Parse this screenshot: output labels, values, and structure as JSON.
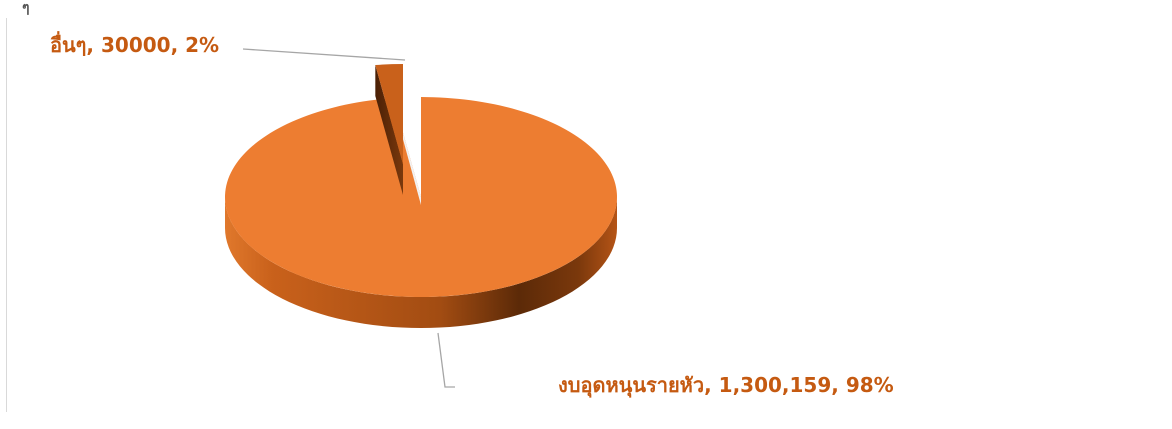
{
  "chart_data": {
    "type": "pie",
    "style": "3d-exploded",
    "categories": [
      "อื่นๆ",
      "งบอุดหนุนรายหัว"
    ],
    "values": [
      30000,
      1300159
    ],
    "values_display": [
      "30000",
      "1,300,159"
    ],
    "percents": [
      "2%",
      "98%"
    ],
    "data_labels": [
      "อื่นๆ, 30000, 2%",
      "งบอุดหนุนรายหัว, 1,300,159, 98%"
    ],
    "colors": {
      "slice_top": "#ed7d31",
      "slice_side_dark": "#5c2a08",
      "slice_side_light": "#d0661e",
      "label": "#c55a11",
      "leader": "#a6a6a6"
    },
    "legend": "none",
    "grid": false
  },
  "corner_mark": "ๆ"
}
